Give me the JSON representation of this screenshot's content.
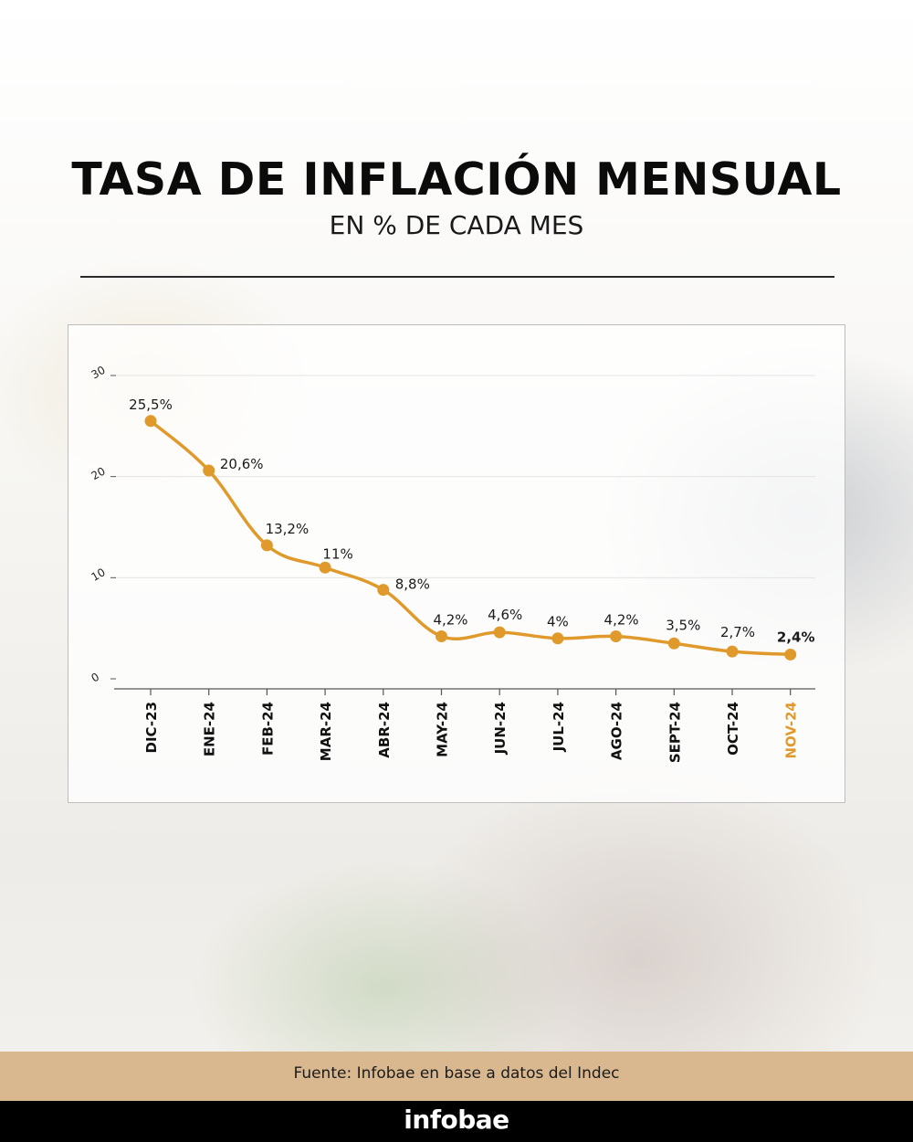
{
  "header": {
    "title": "TASA DE INFLACIÓN MENSUAL",
    "subtitle": "EN % DE CADA MES"
  },
  "footer": {
    "source": "Fuente: Infobae en base a datos del Indec",
    "brand": "infobae"
  },
  "colors": {
    "line": "#e09a2b",
    "highlight_label": "#e09a2b",
    "footer_bar": "#d9b890",
    "brand_bar": "#000000"
  },
  "chart_data": {
    "type": "line",
    "title": "TASA DE INFLACIÓN MENSUAL",
    "subtitle": "EN % DE CADA MES",
    "categories": [
      "DIC-23",
      "ENE-24",
      "FEB-24",
      "MAR-24",
      "ABR-24",
      "MAY-24",
      "JUN-24",
      "JUL-24",
      "AGO-24",
      "SEPT-24",
      "OCT-24",
      "NOV-24"
    ],
    "values": [
      25.5,
      20.6,
      13.2,
      11,
      8.8,
      4.2,
      4.6,
      4,
      4.2,
      3.5,
      2.7,
      2.4
    ],
    "data_labels": [
      "25,5%",
      "20,6%",
      "13,2%",
      "11%",
      "8,8%",
      "4,2%",
      "4,6%",
      "4%",
      "4,2%",
      "3,5%",
      "2,7%",
      "2,4%"
    ],
    "highlight_index": 11,
    "y_ticks": [
      0,
      10,
      20,
      30
    ],
    "y_tick_labels": [
      "0",
      "10",
      "20",
      "30"
    ],
    "ylim": [
      0,
      30
    ],
    "grid": true,
    "legend": "none"
  }
}
